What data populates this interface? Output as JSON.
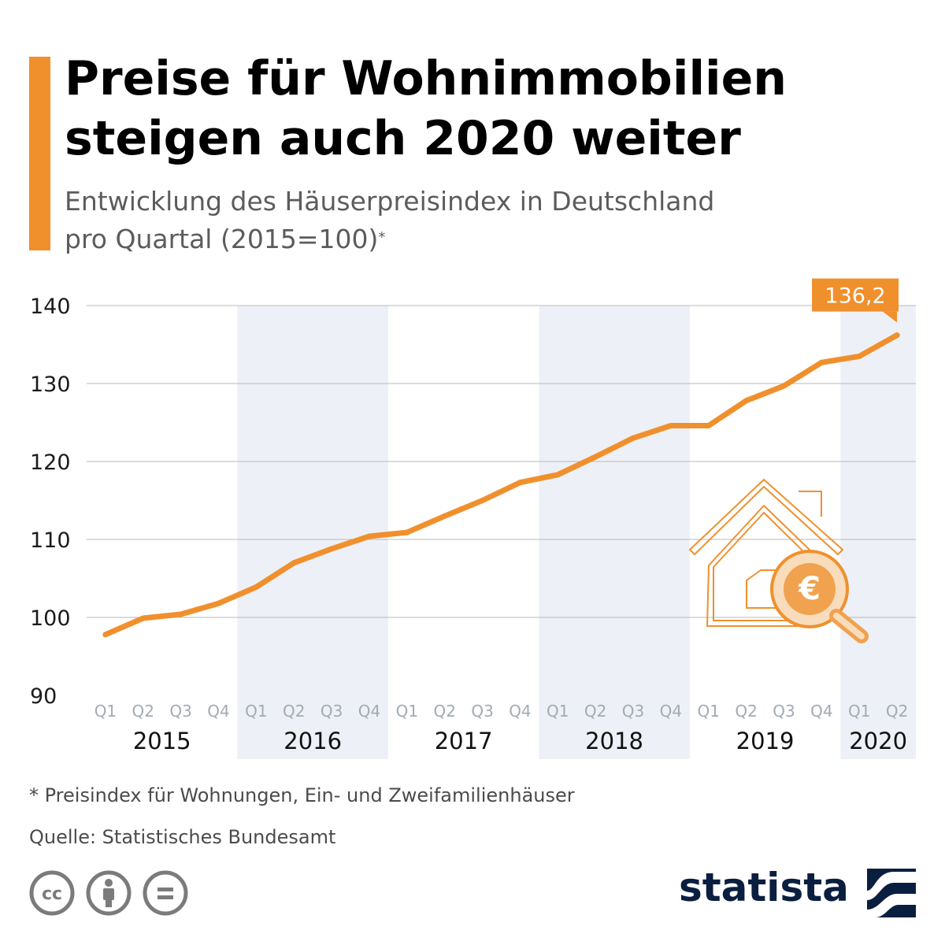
{
  "title": "Preise für Wohnimmobilien steigen auch 2020 weiter",
  "subtitle_line1": "Entwicklung des Häuserpreisindex in Deutschland",
  "subtitle_line2": "pro Quartal (2015=100)",
  "subtitle_mark": "*",
  "colors": {
    "accent": "#f0902d",
    "line": "#f0902d",
    "band": "#edf0f6",
    "grid": "#b9b9b9",
    "icon": "#f0902d",
    "brand": "#0a1f3f",
    "cc": "#7b7b7b"
  },
  "chart_data": {
    "type": "line",
    "title": "Entwicklung des Häuserpreisindex in Deutschland pro Quartal (2015=100)",
    "x_quarters": [
      "Q1",
      "Q2",
      "Q3",
      "Q4",
      "Q1",
      "Q2",
      "Q3",
      "Q4",
      "Q1",
      "Q2",
      "Q3",
      "Q4",
      "Q1",
      "Q2",
      "Q3",
      "Q4",
      "Q1",
      "Q2",
      "Q3",
      "Q4",
      "Q1",
      "Q2"
    ],
    "years": [
      {
        "label": "2015",
        "quarters": 4,
        "shaded": false
      },
      {
        "label": "2016",
        "quarters": 4,
        "shaded": true
      },
      {
        "label": "2017",
        "quarters": 4,
        "shaded": false
      },
      {
        "label": "2018",
        "quarters": 4,
        "shaded": true
      },
      {
        "label": "2019",
        "quarters": 4,
        "shaded": false
      },
      {
        "label": "2020",
        "quarters": 2,
        "shaded": true
      }
    ],
    "series": [
      {
        "name": "Häuserpreisindex",
        "values": [
          97.8,
          99.9,
          100.4,
          101.8,
          103.9,
          107.0,
          108.8,
          110.4,
          110.9,
          113.0,
          115.0,
          117.3,
          118.3,
          120.6,
          123.0,
          124.6,
          124.6,
          127.8,
          129.7,
          132.7,
          133.5,
          136.2
        ]
      }
    ],
    "y_ticks": [
      90,
      100,
      110,
      120,
      130,
      140
    ],
    "ylim": [
      90,
      140
    ],
    "last_value_label": "136,2",
    "grid": true
  },
  "footnote": "* Preisindex für Wohnungen, Ein- und Zweifamilienhäuser",
  "source": "Quelle: Statistisches Bundesamt",
  "license_icons": [
    "creative-commons-icon",
    "attribution-person-icon",
    "no-derivatives-icon"
  ],
  "brand": "statista"
}
